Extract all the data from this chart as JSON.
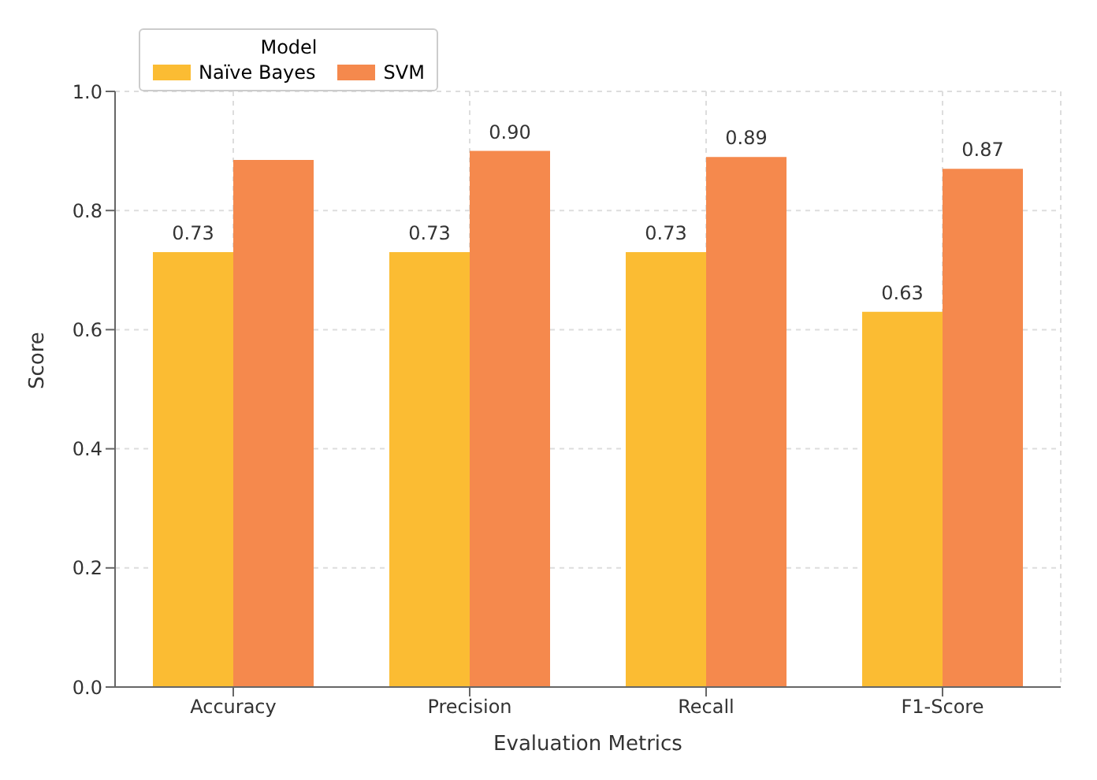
{
  "chart_data": {
    "type": "bar",
    "xlabel": "Evaluation Metrics",
    "ylabel": "Score",
    "legend_title": "Model",
    "categories": [
      "Accuracy",
      "Precision",
      "Recall",
      "F1-Score"
    ],
    "series": [
      {
        "name": "Naïve Bayes",
        "color": "#fbbc33",
        "values": [
          0.73,
          0.73,
          0.73,
          0.63
        ],
        "value_labels": [
          "0.73",
          "0.73",
          "0.73",
          "0.63"
        ]
      },
      {
        "name": "SVM",
        "color": "#f5894d",
        "values": [
          0.885,
          0.9,
          0.89,
          0.87
        ],
        "value_labels": [
          null,
          "0.90",
          "0.89",
          "0.87"
        ]
      }
    ],
    "ylim": [
      0,
      1
    ],
    "yticks": [
      {
        "value": 0,
        "label": "0.0"
      },
      {
        "value": 0.2,
        "label": "0.2"
      },
      {
        "value": 0.4,
        "label": "0.4"
      },
      {
        "value": 0.6,
        "label": "0.6"
      },
      {
        "value": 0.8,
        "label": "0.8"
      },
      {
        "value": 1,
        "label": "1.0"
      }
    ],
    "grid": true,
    "legend": "top left"
  }
}
